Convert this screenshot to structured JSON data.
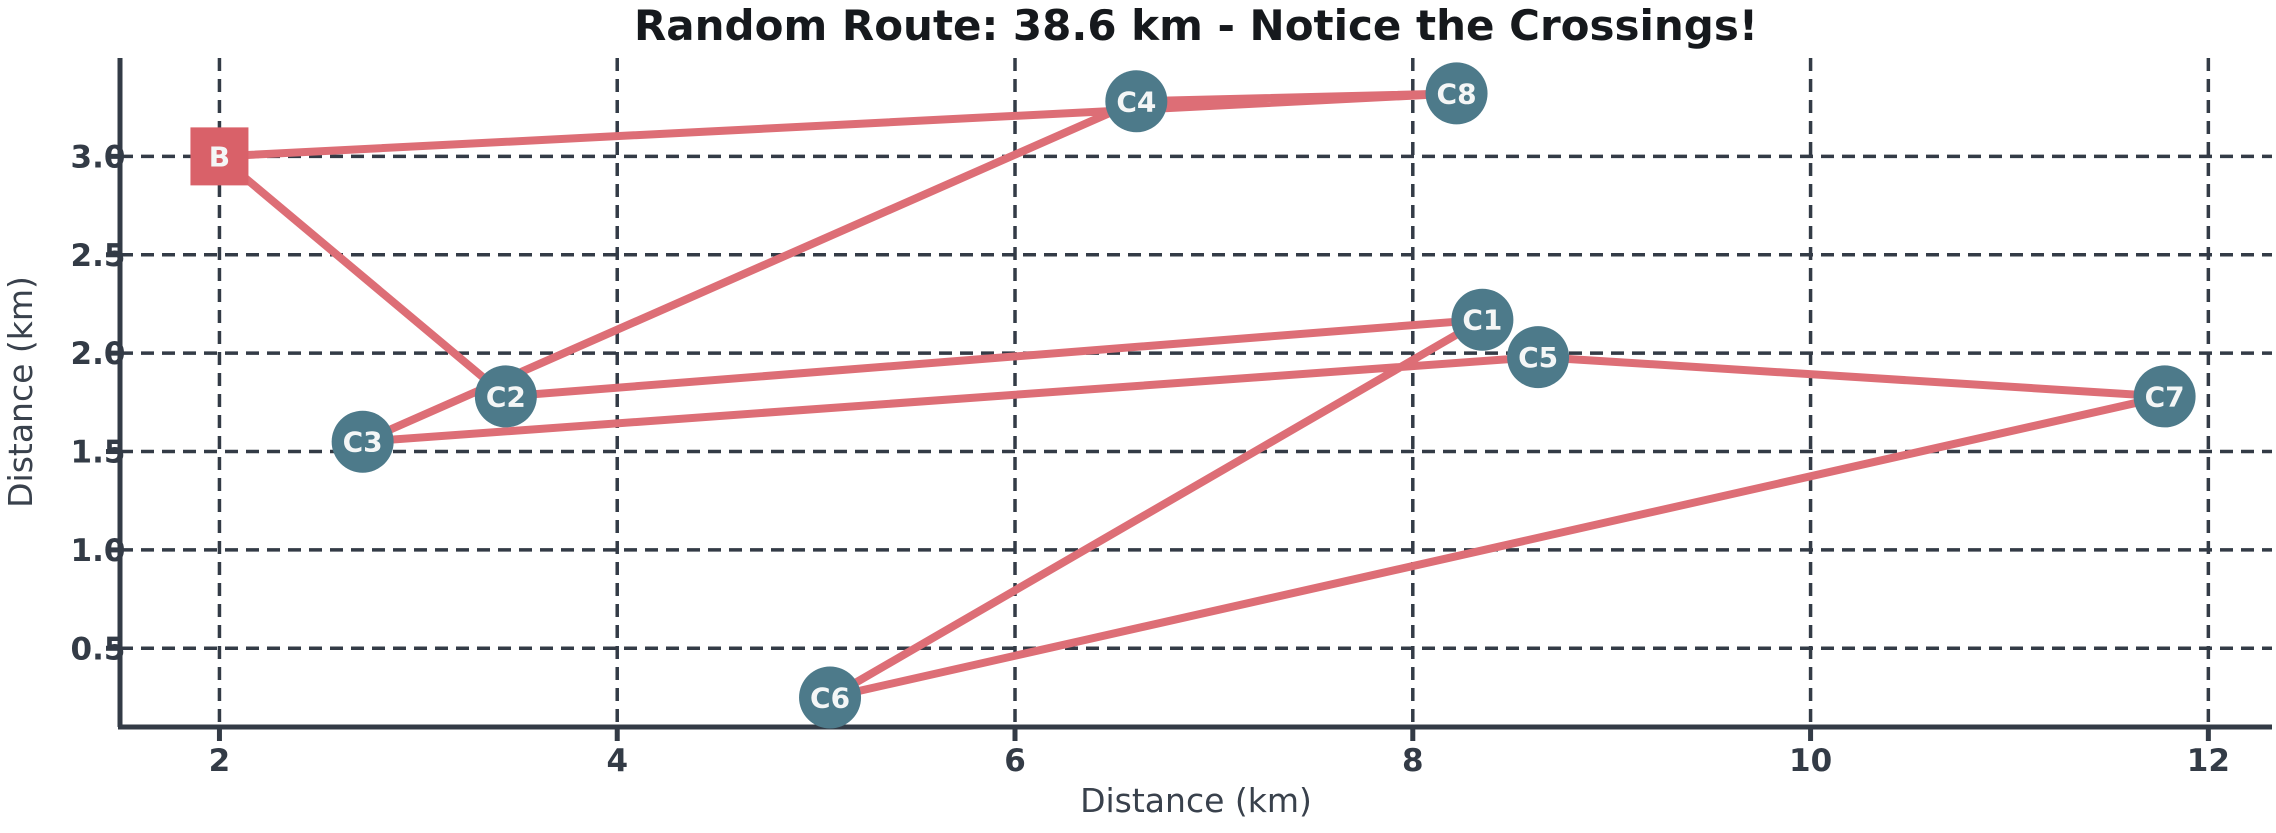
{
  "chart_data": {
    "type": "line",
    "title": "Random Route: 38.6 km - Notice the Crossings!",
    "xlabel": "Distance (km)",
    "ylabel": "Distance (km)",
    "total_distance_km": 38.6,
    "x_ticks": [
      2,
      4,
      6,
      8,
      10,
      12
    ],
    "y_ticks": [
      0.5,
      1.0,
      1.5,
      2.0,
      2.5,
      3.0
    ],
    "xlim": [
      1.5,
      12.32
    ],
    "ylim": [
      0.1,
      3.5
    ],
    "grid": true,
    "grid_style": "dashed",
    "legend": "none",
    "nodes": [
      {
        "id": "B",
        "label": "B",
        "x": 2.0,
        "y": 3.0,
        "marker": "square",
        "role": "base"
      },
      {
        "id": "C1",
        "label": "C1",
        "x": 8.35,
        "y": 2.17,
        "marker": "circle",
        "role": "city"
      },
      {
        "id": "C2",
        "label": "C2",
        "x": 3.44,
        "y": 1.78,
        "marker": "circle",
        "role": "city"
      },
      {
        "id": "C3",
        "label": "C3",
        "x": 2.72,
        "y": 1.55,
        "marker": "circle",
        "role": "city"
      },
      {
        "id": "C4",
        "label": "C4",
        "x": 6.61,
        "y": 3.28,
        "marker": "circle",
        "role": "city"
      },
      {
        "id": "C5",
        "label": "C5",
        "x": 8.63,
        "y": 1.98,
        "marker": "circle",
        "role": "city"
      },
      {
        "id": "C6",
        "label": "C6",
        "x": 5.07,
        "y": 0.25,
        "marker": "circle",
        "role": "city"
      },
      {
        "id": "C7",
        "label": "C7",
        "x": 11.78,
        "y": 1.78,
        "marker": "circle",
        "role": "city"
      },
      {
        "id": "C8",
        "label": "C8",
        "x": 8.22,
        "y": 3.32,
        "marker": "circle",
        "role": "city"
      }
    ],
    "route": [
      "B",
      "C2",
      "C1",
      "C6",
      "C7",
      "C5",
      "C3",
      "C4",
      "C8",
      "B"
    ],
    "colors": {
      "route_line": "#DD6E76",
      "base_marker": "#D96169",
      "city_marker": "#4D7A8A",
      "node_label": "#F4F6F6",
      "grid": "#333B46",
      "spine": "#333B46",
      "tick_label": "#333B46",
      "axis_label": "#39414C",
      "title": "#16191D",
      "background": "#FFFFFF"
    }
  }
}
